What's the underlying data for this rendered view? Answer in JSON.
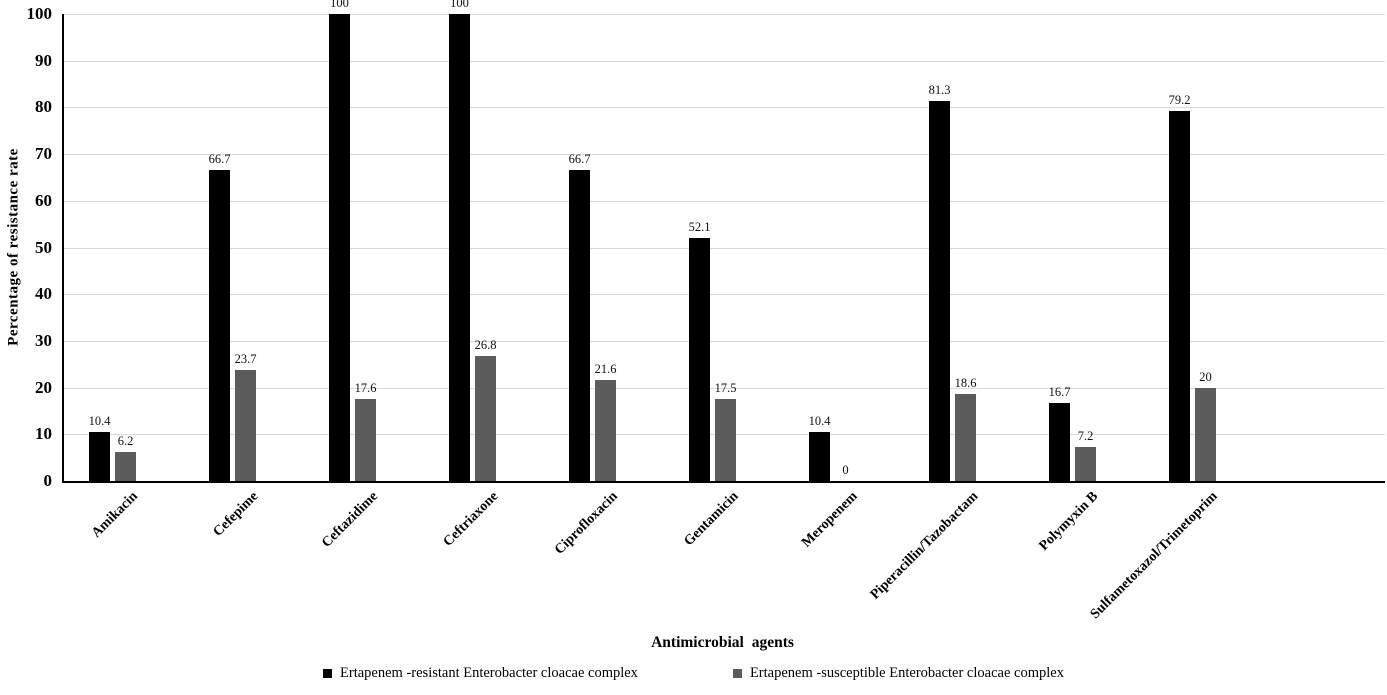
{
  "chart_data": {
    "type": "bar",
    "title": "",
    "xlabel": "Antimicrobial agents",
    "ylabel": "Percentage of resistance rate",
    "categories": [
      "Amikacin",
      "Cefepime",
      "Ceftazidime",
      "Ceftriaxone",
      "Ciprofloxacin",
      "Gentamicin",
      "Meropenem",
      "Piperacillin/Tazobactam",
      "Polymyxin B",
      "Sulfametoxazol/Trimetoprim"
    ],
    "series": [
      {
        "name": "Ertapenem -resistant Enterobacter cloacae complex",
        "color": "#000000",
        "values": [
          10.4,
          66.7,
          100,
          100,
          66.7,
          52.1,
          10.4,
          81.3,
          16.7,
          79.2
        ]
      },
      {
        "name": "Ertapenem -susceptible Enterobacter cloacae complex",
        "color": "#5b5b5b",
        "values": [
          6.2,
          23.7,
          17.6,
          26.8,
          21.6,
          17.5,
          0,
          18.6,
          7.2,
          20
        ]
      }
    ],
    "ylim": [
      0,
      100
    ],
    "yticks": [
      0,
      10,
      20,
      30,
      40,
      50,
      60,
      70,
      80,
      90,
      100
    ],
    "grid": true,
    "gridline_color": "#d9d9d9",
    "axis_color": "#000000",
    "value_labels": true,
    "legend_position": "bottom"
  }
}
